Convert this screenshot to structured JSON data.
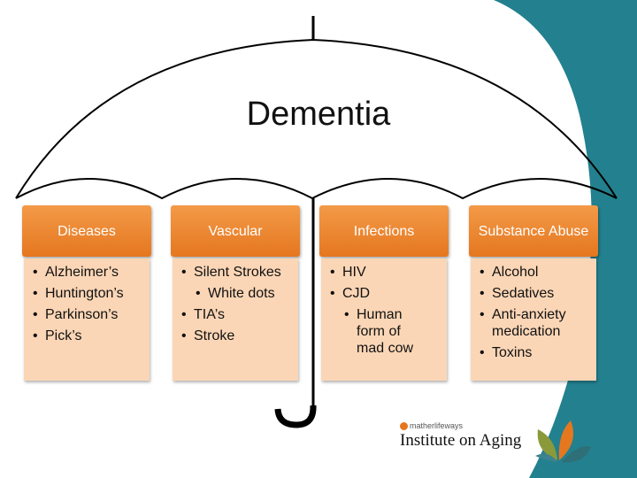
{
  "title": "Dementia",
  "columns": [
    {
      "header": "Diseases",
      "items": [
        "Alzheimer’s",
        "Huntington’s",
        "Parkinson’s",
        "Pick’s"
      ]
    },
    {
      "header": "Vascular",
      "items": [
        "Silent Strokes",
        "White dots",
        "TIA’s",
        "Stroke"
      ]
    },
    {
      "header": "Infections",
      "items": [
        "HIV",
        "CJD",
        "Human form of mad cow"
      ]
    },
    {
      "header": "Substance Abuse",
      "items": [
        "Alcohol",
        "Sedatives",
        "Anti-anxiety medication",
        "Toxins"
      ]
    }
  ],
  "logo": {
    "brand_small": "matherlifeways",
    "brand_main": "Institute on Aging"
  },
  "colors": {
    "header_orange": "#e5771f",
    "body_peach": "#fbd6b6",
    "teal": "#23808f"
  }
}
